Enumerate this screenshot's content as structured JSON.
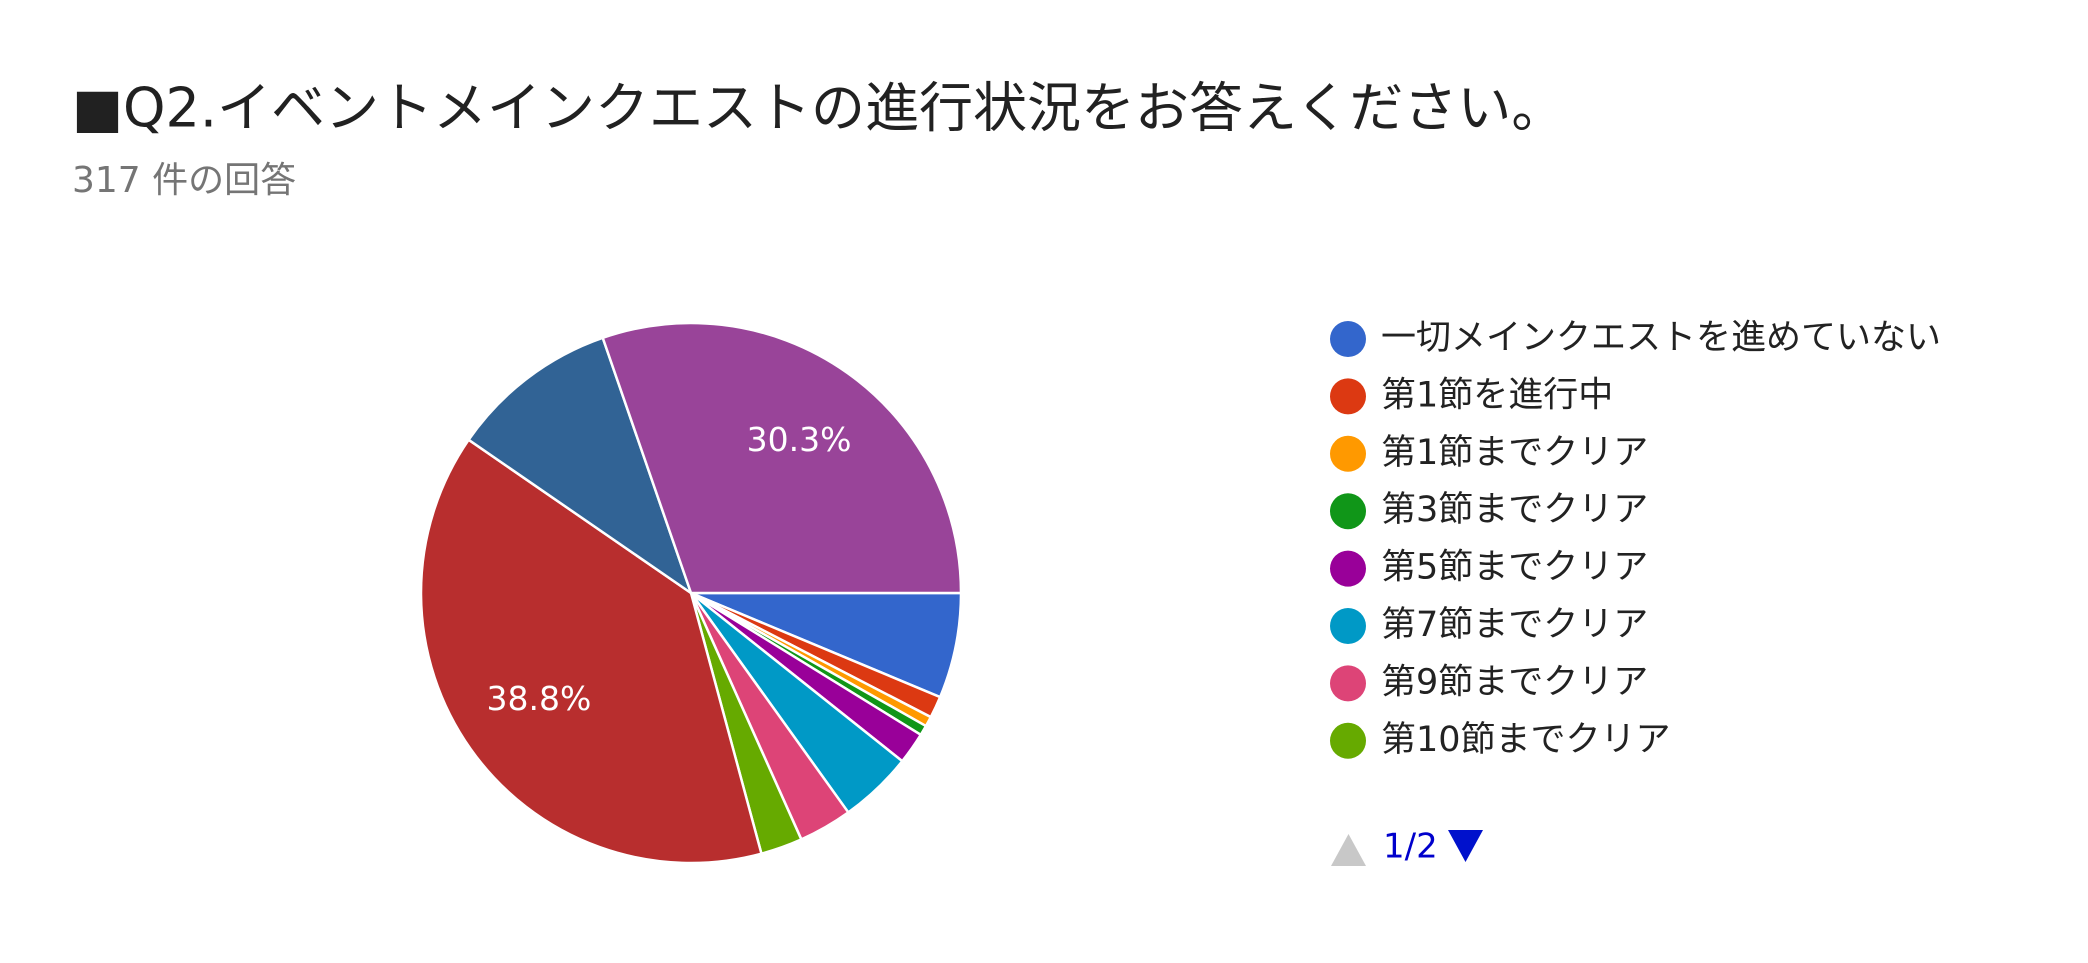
{
  "chart_data": {
    "type": "pie",
    "title": "■Q2.イベントメインクエストの進行状況をお答えください。",
    "subtitle": "317 件の回答",
    "categories": [
      "一切メインクエストを進めていない",
      "第1節を進行中",
      "第1節までクリア",
      "第3節までクリア",
      "第5節までクリア",
      "第7節までクリア",
      "第9節までクリア",
      "第10節までクリア",
      null,
      null,
      null
    ],
    "values": [
      6.3,
      1.3,
      0.6,
      0.6,
      1.9,
      4.4,
      3.2,
      2.5,
      38.8,
      10.1,
      30.3
    ],
    "value_labels": [
      null,
      null,
      null,
      null,
      null,
      null,
      null,
      null,
      "38.8%",
      null,
      "30.3%"
    ],
    "colors": [
      "#3366cc",
      "#dc3912",
      "#ff9900",
      "#109618",
      "#990099",
      "#0099c6",
      "#dd4477",
      "#66aa00",
      "#b82e2e",
      "#316395",
      "#994499"
    ],
    "legend_page": "1/2"
  }
}
